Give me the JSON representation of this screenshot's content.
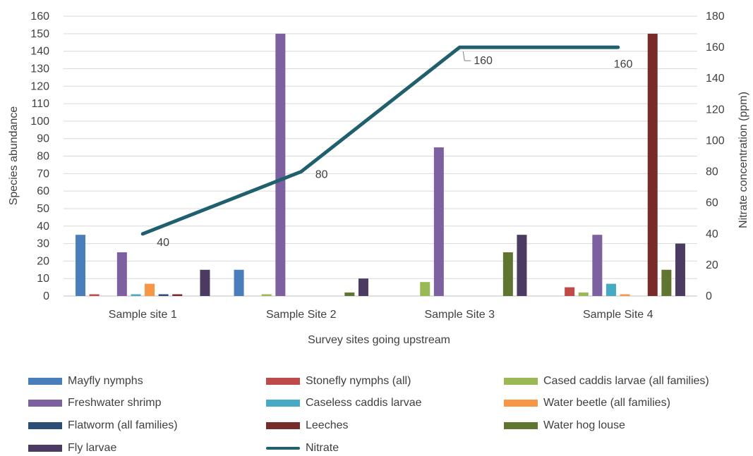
{
  "chart_data": {
    "type": "bar",
    "title": "",
    "xlabel": "Survey sites going upstream",
    "ylabel": "Species abundance",
    "y2label": "Nitrate concentration (ppm)",
    "ylim": [
      0,
      160
    ],
    "y2lim": [
      0,
      180
    ],
    "yticks": [
      0,
      10,
      20,
      30,
      40,
      50,
      60,
      70,
      80,
      90,
      100,
      110,
      120,
      130,
      140,
      150,
      160
    ],
    "y2ticks": [
      0,
      20,
      40,
      60,
      80,
      100,
      120,
      140,
      160,
      180
    ],
    "categories": [
      "Sample site 1",
      "Sample Site 2",
      "Sample Site 3",
      "Sample Site 4"
    ],
    "grid": true,
    "legend_position": "bottom",
    "series": [
      {
        "name": "Mayfly nymphs",
        "color": "#4a7ebb",
        "values": [
          35,
          15,
          0,
          0
        ]
      },
      {
        "name": "Stonefly nymphs (all)",
        "color": "#be4b48",
        "values": [
          1,
          0,
          0,
          5
        ]
      },
      {
        "name": "Cased caddis larvae (all families)",
        "color": "#98b954",
        "values": [
          0,
          1,
          8,
          2
        ]
      },
      {
        "name": "Freshwater shrimp",
        "color": "#7d60a0",
        "values": [
          25,
          150,
          85,
          35
        ]
      },
      {
        "name": "Caseless caddis larvae",
        "color": "#46aac5",
        "values": [
          1,
          0,
          0,
          7
        ]
      },
      {
        "name": "Water beetle (all families)",
        "color": "#f79646",
        "values": [
          7,
          0,
          0,
          1
        ]
      },
      {
        "name": "Flatworm (all families)",
        "color": "#2c4d75",
        "values": [
          1,
          0,
          0,
          0
        ]
      },
      {
        "name": "Leeches",
        "color": "#772c2a",
        "values": [
          1,
          0,
          0,
          150
        ]
      },
      {
        "name": "Water hog louse",
        "color": "#5f7530",
        "values": [
          0,
          2,
          25,
          15
        ]
      },
      {
        "name": "Fly larvae",
        "color": "#4b3a62",
        "values": [
          15,
          10,
          35,
          30
        ]
      }
    ],
    "line_series": {
      "name": "Nitrate",
      "axis": "secondary",
      "color": "#1f5f6e",
      "values": [
        40,
        80,
        160,
        160
      ],
      "labels": [
        "40",
        "80",
        "160",
        "160"
      ]
    }
  }
}
